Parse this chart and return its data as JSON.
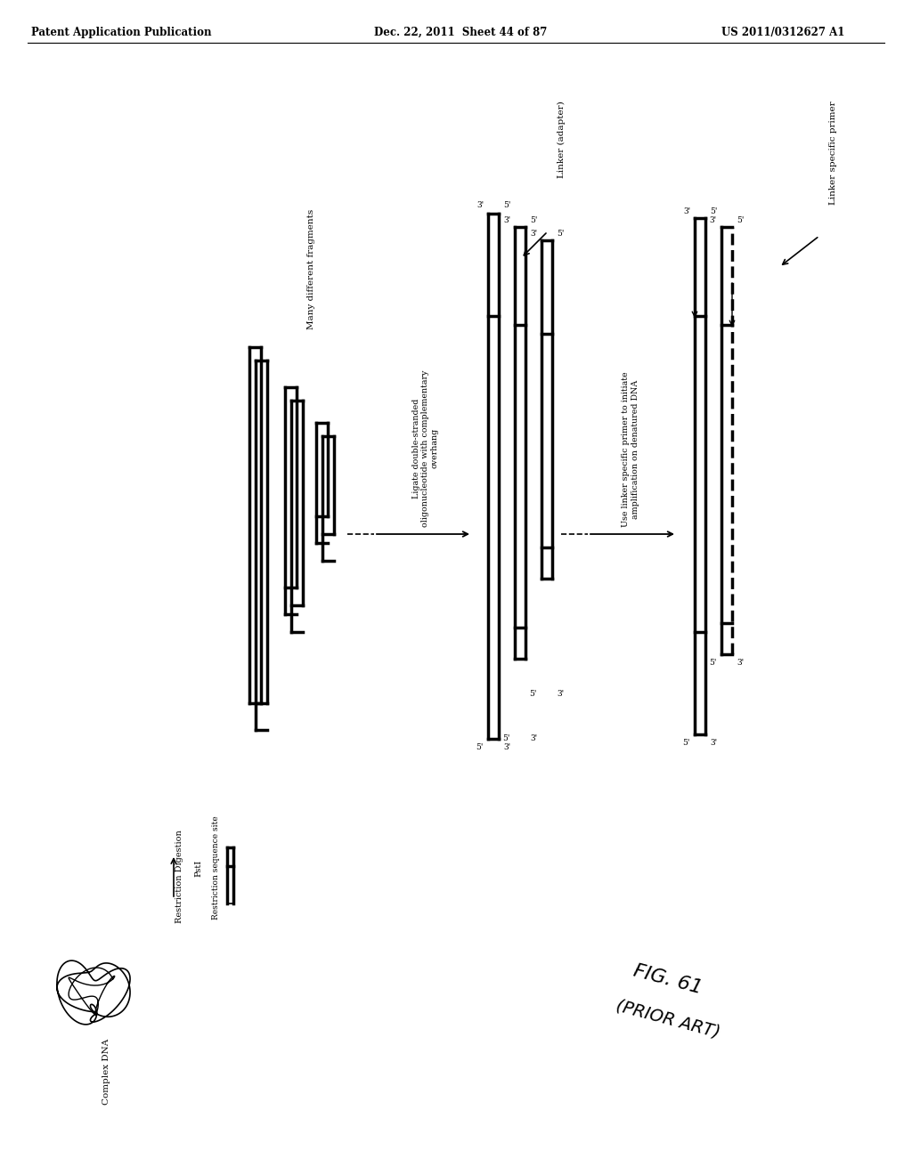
{
  "bg_color": "#ffffff",
  "header_left": "Patent Application Publication",
  "header_mid": "Dec. 22, 2011  Sheet 44 of 87",
  "header_right": "US 2011/0312627 A1",
  "fig_label": "FIG. 61",
  "fig_sublabel": "(PRIOR ART)",
  "title_fontsize": 9,
  "header_fontsize": 8.5
}
